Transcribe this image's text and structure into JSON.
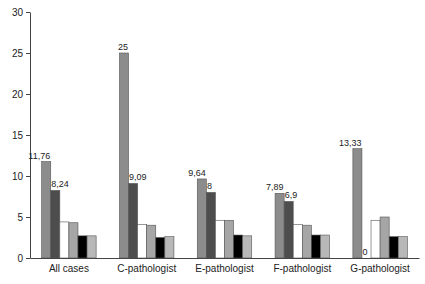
{
  "chart_data": {
    "type": "bar",
    "categories": [
      "All cases",
      "C-pathologist",
      "E-pathologist",
      "F-pathologist",
      "G-pathologist"
    ],
    "series": [
      {
        "color": "#8c8c8c",
        "values": [
          11.76,
          25,
          9.64,
          7.89,
          13.33
        ],
        "data_labels": true,
        "value_labels": [
          "11,76",
          "25",
          "9,64",
          "7,89",
          "13,33"
        ]
      },
      {
        "color": "#4d4d4d",
        "values": [
          8.24,
          9.09,
          8,
          6.9,
          0
        ],
        "data_labels": true,
        "value_labels": [
          "8,24",
          "9,09",
          "8",
          "6,9",
          "0"
        ]
      },
      {
        "color": "#ffffff",
        "values": [
          4.4,
          4.1,
          4.6,
          4.1,
          4.6
        ]
      },
      {
        "color": "#a6a6a6",
        "values": [
          4.3,
          4.0,
          4.6,
          4.0,
          5.0
        ]
      },
      {
        "color": "#000000",
        "values": [
          2.7,
          2.5,
          2.8,
          2.8,
          2.6
        ]
      },
      {
        "color": "#b8b8b8",
        "values": [
          2.7,
          2.6,
          2.7,
          2.8,
          2.6
        ]
      }
    ],
    "ylim": [
      0,
      30
    ],
    "yticks": [
      0,
      5,
      10,
      15,
      20,
      25,
      30
    ],
    "grid": false
  }
}
